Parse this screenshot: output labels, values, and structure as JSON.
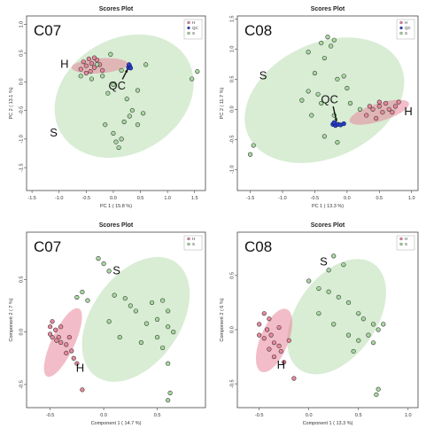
{
  "chart_data": [
    {
      "type": "scatter",
      "title": "Scores Plot",
      "panel_label": "C07",
      "xlabel": "PC 1 ( 15.8 %)",
      "ylabel": "PC 2 ( 13.1 %)",
      "xlim": [
        -1.6,
        1.7
      ],
      "ylim": [
        -1.9,
        1.15
      ],
      "xticks": [
        "-1.5",
        "-1.0",
        "-0.5",
        "0.0",
        "0.5",
        "1.0",
        "1.5"
      ],
      "yticks": [
        "1.0",
        "0.5",
        "0.0",
        "-0.5",
        "-1.0",
        "-1.5"
      ],
      "legend": [
        "H",
        "QC",
        "S"
      ],
      "legend_position": "top-right",
      "colors": {
        "H": "#e8879b",
        "QC": "#1a2a9e",
        "S": "#a8d8a0"
      },
      "ellipses": [
        {
          "group": "S",
          "cx": 0.2,
          "cy": -0.25,
          "rx": 1.35,
          "ry": 1.0,
          "angle": 30
        },
        {
          "group": "H",
          "cx": -0.25,
          "cy": 0.28,
          "rx": 0.52,
          "ry": 0.13,
          "angle": 4
        }
      ],
      "series": [
        {
          "name": "H",
          "points": [
            [
              -0.55,
              0.35
            ],
            [
              -0.5,
              0.28
            ],
            [
              -0.45,
              0.4
            ],
            [
              -0.4,
              0.32
            ],
            [
              -0.35,
              0.25
            ],
            [
              -0.3,
              0.38
            ],
            [
              -0.25,
              0.3
            ],
            [
              -0.6,
              0.22
            ],
            [
              -0.42,
              0.18
            ],
            [
              -0.2,
              0.2
            ],
            [
              -0.5,
              0.15
            ],
            [
              -0.35,
              0.42
            ]
          ]
        },
        {
          "name": "QC",
          "points": [
            [
              0.28,
              0.25
            ],
            [
              0.3,
              0.28
            ],
            [
              0.32,
              0.24
            ],
            [
              0.29,
              0.3
            ]
          ]
        },
        {
          "name": "S",
          "points": [
            [
              -0.6,
              0.1
            ],
            [
              -0.4,
              0.05
            ],
            [
              -0.2,
              0.1
            ],
            [
              0.0,
              -0.05
            ],
            [
              0.15,
              0.2
            ],
            [
              0.25,
              -0.3
            ],
            [
              0.45,
              -0.15
            ],
            [
              0.35,
              -0.5
            ],
            [
              -0.1,
              -0.2
            ],
            [
              -0.15,
              -0.75
            ],
            [
              0.0,
              -0.9
            ],
            [
              0.05,
              -1.05
            ],
            [
              0.15,
              -1.0
            ],
            [
              0.1,
              -1.15
            ],
            [
              0.3,
              -0.6
            ],
            [
              0.45,
              -0.75
            ],
            [
              0.55,
              -0.55
            ],
            [
              0.2,
              -0.7
            ],
            [
              -0.3,
              0.3
            ],
            [
              1.45,
              0.05
            ],
            [
              1.55,
              0.18
            ],
            [
              0.6,
              0.3
            ],
            [
              -0.05,
              0.48
            ]
          ]
        }
      ],
      "annotations": [
        {
          "text": "H",
          "x": -0.9,
          "y": 0.3
        },
        {
          "text": "QC",
          "x": 0.07,
          "y": -0.08
        },
        {
          "text": "S",
          "x": -1.1,
          "y": -0.9
        }
      ]
    },
    {
      "type": "scatter",
      "title": "Scores Plot",
      "panel_label": "C08",
      "xlabel": "PC 1 ( 13.3 %)",
      "ylabel": "PC 2 ( 11.7 %)",
      "xlim": [
        -1.7,
        1.1
      ],
      "ylim": [
        -1.35,
        1.55
      ],
      "xticks": [
        "-1.5",
        "-1.0",
        "-0.5",
        "0.0",
        "0.5",
        "1.0"
      ],
      "yticks": [
        "1.5",
        "1.0",
        "0.5",
        "0.0",
        "-0.5",
        "-1.0"
      ],
      "legend": [
        "H",
        "QC",
        "S"
      ],
      "legend_position": "top-right",
      "colors": {
        "H": "#e8879b",
        "QC": "#1a2a9e",
        "S": "#a8d8a0"
      },
      "ellipses": [
        {
          "group": "S",
          "cx": -0.35,
          "cy": 0.15,
          "rx": 1.3,
          "ry": 0.95,
          "angle": 25
        },
        {
          "group": "H",
          "cx": 0.5,
          "cy": -0.05,
          "rx": 0.48,
          "ry": 0.15,
          "angle": 17
        }
      ],
      "series": [
        {
          "name": "H",
          "points": [
            [
              0.3,
              -0.1
            ],
            [
              0.4,
              0.0
            ],
            [
              0.5,
              0.05
            ],
            [
              0.55,
              -0.05
            ],
            [
              0.6,
              0.1
            ],
            [
              0.65,
              0.0
            ],
            [
              0.7,
              -0.05
            ],
            [
              0.45,
              -0.15
            ],
            [
              0.75,
              0.05
            ],
            [
              0.8,
              0.12
            ],
            [
              0.35,
              0.05
            ],
            [
              0.5,
              0.12
            ]
          ]
        },
        {
          "name": "QC",
          "points": [
            [
              -0.22,
              -0.25
            ],
            [
              -0.18,
              -0.27
            ],
            [
              -0.14,
              -0.25
            ],
            [
              -0.1,
              -0.26
            ],
            [
              -0.05,
              -0.24
            ],
            [
              -0.2,
              -0.22
            ]
          ]
        },
        {
          "name": "S",
          "points": [
            [
              -0.4,
              1.1
            ],
            [
              -0.3,
              1.2
            ],
            [
              -0.25,
              1.05
            ],
            [
              -0.2,
              1.15
            ],
            [
              -0.35,
              0.85
            ],
            [
              -0.5,
              0.6
            ],
            [
              -0.6,
              0.3
            ],
            [
              -0.45,
              0.25
            ],
            [
              -0.4,
              0.1
            ],
            [
              -0.55,
              -0.1
            ],
            [
              -0.7,
              0.15
            ],
            [
              -0.15,
              0.5
            ],
            [
              0.0,
              0.35
            ],
            [
              0.05,
              0.1
            ],
            [
              -0.2,
              -0.1
            ],
            [
              -0.35,
              -0.45
            ],
            [
              -0.15,
              -0.55
            ],
            [
              -1.5,
              -0.75
            ],
            [
              -1.45,
              -0.6
            ],
            [
              0.2,
              0.0
            ],
            [
              -0.05,
              0.55
            ],
            [
              -0.6,
              0.95
            ]
          ]
        }
      ],
      "annotations": [
        {
          "text": "QC",
          "x": -0.27,
          "y": 0.15
        },
        {
          "text": "H",
          "x": 0.95,
          "y": -0.05
        },
        {
          "text": "S",
          "x": -1.3,
          "y": 0.55
        }
      ]
    },
    {
      "type": "scatter",
      "title": "Scores Plot",
      "panel_label": "C07",
      "xlabel": "Component 1 ( 14.7 %)",
      "ylabel": "Component 2 ( 7 %)",
      "xlim": [
        -0.72,
        0.95
      ],
      "ylim": [
        -0.72,
        0.95
      ],
      "xticks": [
        "-0.5",
        "0.0",
        "0.5"
      ],
      "yticks": [
        "0.5",
        "0.0",
        "-0.5"
      ],
      "legend": [
        "H",
        "S"
      ],
      "legend_position": "top-right",
      "colors": {
        "H": "#e8879b",
        "S": "#a8d8a0"
      },
      "ellipses": [
        {
          "group": "S",
          "cx": 0.3,
          "cy": 0.12,
          "rx": 0.65,
          "ry": 0.42,
          "angle": 55
        },
        {
          "group": "H",
          "cx": -0.38,
          "cy": -0.1,
          "rx": 0.35,
          "ry": 0.11,
          "angle": 65
        }
      ],
      "series": [
        {
          "name": "H",
          "points": [
            [
              -0.48,
              0.1
            ],
            [
              -0.5,
              0.05
            ],
            [
              -0.45,
              0.02
            ],
            [
              -0.42,
              -0.05
            ],
            [
              -0.48,
              -0.05
            ],
            [
              -0.4,
              -0.1
            ],
            [
              -0.35,
              -0.12
            ],
            [
              -0.3,
              -0.18
            ],
            [
              -0.28,
              -0.25
            ],
            [
              -0.25,
              -0.3
            ],
            [
              -0.32,
              -0.05
            ],
            [
              -0.4,
              0.05
            ],
            [
              -0.44,
              -0.08
            ],
            [
              -0.5,
              -0.02
            ],
            [
              -0.2,
              -0.55
            ],
            [
              -0.35,
              -0.2
            ]
          ]
        },
        {
          "name": "S",
          "points": [
            [
              -0.05,
              0.7
            ],
            [
              0.0,
              0.65
            ],
            [
              0.05,
              0.58
            ],
            [
              -0.2,
              0.38
            ],
            [
              -0.15,
              0.3
            ],
            [
              0.1,
              0.35
            ],
            [
              0.2,
              0.32
            ],
            [
              0.25,
              0.25
            ],
            [
              0.3,
              0.2
            ],
            [
              0.45,
              0.28
            ],
            [
              0.55,
              0.3
            ],
            [
              0.6,
              0.2
            ],
            [
              0.5,
              0.12
            ],
            [
              0.4,
              0.08
            ],
            [
              0.6,
              0.05
            ],
            [
              0.65,
              0.0
            ],
            [
              0.5,
              -0.05
            ],
            [
              0.55,
              -0.15
            ],
            [
              0.35,
              -0.1
            ],
            [
              0.6,
              -0.3
            ],
            [
              0.62,
              -0.58
            ],
            [
              0.6,
              -0.65
            ],
            [
              -0.25,
              0.33
            ],
            [
              0.05,
              0.1
            ],
            [
              0.15,
              -0.05
            ]
          ]
        }
      ],
      "annotations": [
        {
          "text": "S",
          "x": 0.12,
          "y": 0.58
        },
        {
          "text": "H",
          "x": -0.22,
          "y": -0.35
        }
      ]
    },
    {
      "type": "scatter",
      "title": "Scores Plot",
      "panel_label": "C08",
      "xlabel": "Component 1 ( 13.3 %)",
      "ylabel": "Component 2 ( 6 %)",
      "xlim": [
        -0.72,
        1.1
      ],
      "ylim": [
        -0.72,
        0.9
      ],
      "xticks": [
        "-0.5",
        "0.0",
        "0.5",
        "1.0"
      ],
      "yticks": [
        "0.5",
        "0.0",
        "-0.5"
      ],
      "legend": [
        "H",
        "S"
      ],
      "legend_position": "top-right",
      "colors": {
        "H": "#e8879b",
        "S": "#a8d8a0"
      },
      "ellipses": [
        {
          "group": "S",
          "cx": 0.28,
          "cy": 0.12,
          "rx": 0.65,
          "ry": 0.37,
          "angle": 55
        },
        {
          "group": "H",
          "cx": -0.35,
          "cy": -0.1,
          "rx": 0.34,
          "ry": 0.13,
          "angle": 68
        }
      ],
      "series": [
        {
          "name": "H",
          "points": [
            [
              -0.45,
              0.15
            ],
            [
              -0.4,
              0.1
            ],
            [
              -0.5,
              0.05
            ],
            [
              -0.42,
              0.0
            ],
            [
              -0.38,
              -0.05
            ],
            [
              -0.45,
              -0.08
            ],
            [
              -0.35,
              -0.12
            ],
            [
              -0.3,
              -0.15
            ],
            [
              -0.28,
              -0.2
            ],
            [
              -0.35,
              -0.25
            ],
            [
              -0.25,
              -0.3
            ],
            [
              -0.4,
              -0.18
            ],
            [
              -0.5,
              -0.05
            ],
            [
              -0.3,
              0.02
            ],
            [
              -0.2,
              -0.1
            ],
            [
              -0.15,
              -0.45
            ]
          ]
        },
        {
          "name": "S",
          "points": [
            [
              0.25,
              0.68
            ],
            [
              0.35,
              0.6
            ],
            [
              0.2,
              0.55
            ],
            [
              0.0,
              0.45
            ],
            [
              0.1,
              0.38
            ],
            [
              0.2,
              0.35
            ],
            [
              0.3,
              0.3
            ],
            [
              0.4,
              0.25
            ],
            [
              0.5,
              0.15
            ],
            [
              0.55,
              0.1
            ],
            [
              0.65,
              0.05
            ],
            [
              0.7,
              0.0
            ],
            [
              0.6,
              -0.05
            ],
            [
              0.65,
              -0.12
            ],
            [
              0.5,
              -0.1
            ],
            [
              0.45,
              -0.2
            ],
            [
              0.4,
              -0.05
            ],
            [
              0.7,
              -0.55
            ],
            [
              0.68,
              -0.6
            ],
            [
              0.25,
              0.05
            ],
            [
              0.1,
              0.15
            ],
            [
              0.75,
              0.05
            ]
          ]
        }
      ],
      "annotations": [
        {
          "text": "S",
          "x": 0.15,
          "y": 0.62
        },
        {
          "text": "H",
          "x": -0.28,
          "y": -0.33
        }
      ]
    }
  ]
}
